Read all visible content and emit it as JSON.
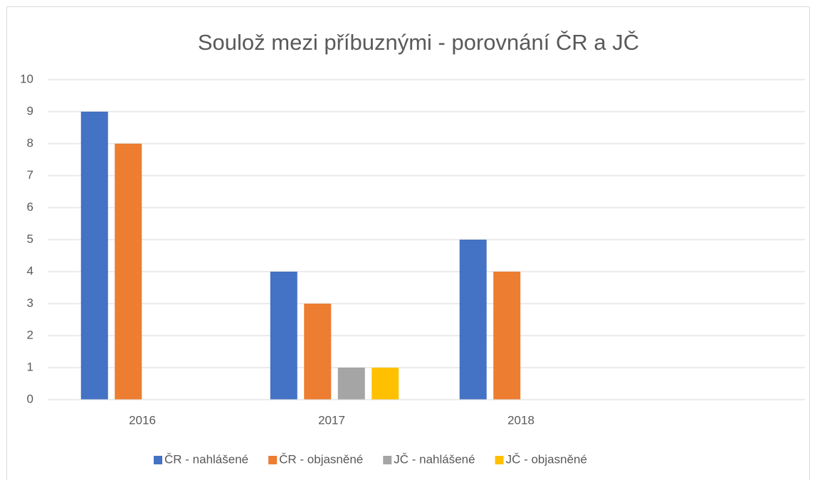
{
  "chart_data": {
    "type": "bar",
    "title": "Soulož mezi příbuznými - porovnání ČR a JČ",
    "categories": [
      "2016",
      "2017",
      "2018",
      null
    ],
    "series": [
      {
        "name": "ČR - nahlášené",
        "color": "#4472c4",
        "values": [
          9,
          4,
          5,
          null
        ]
      },
      {
        "name": "ČR - objasněné",
        "color": "#ed7d31",
        "values": [
          8,
          3,
          4,
          null
        ]
      },
      {
        "name": "JČ - nahlášené",
        "color": "#a5a5a5",
        "values": [
          0,
          1,
          0,
          null
        ]
      },
      {
        "name": "JČ - objasněné",
        "color": "#ffc000",
        "values": [
          0,
          1,
          0,
          null
        ]
      }
    ],
    "ylim": [
      0,
      10
    ],
    "yticks": [
      0,
      1,
      2,
      3,
      4,
      5,
      6,
      7,
      8,
      9,
      10
    ],
    "grid": true,
    "legend": "bottom"
  }
}
